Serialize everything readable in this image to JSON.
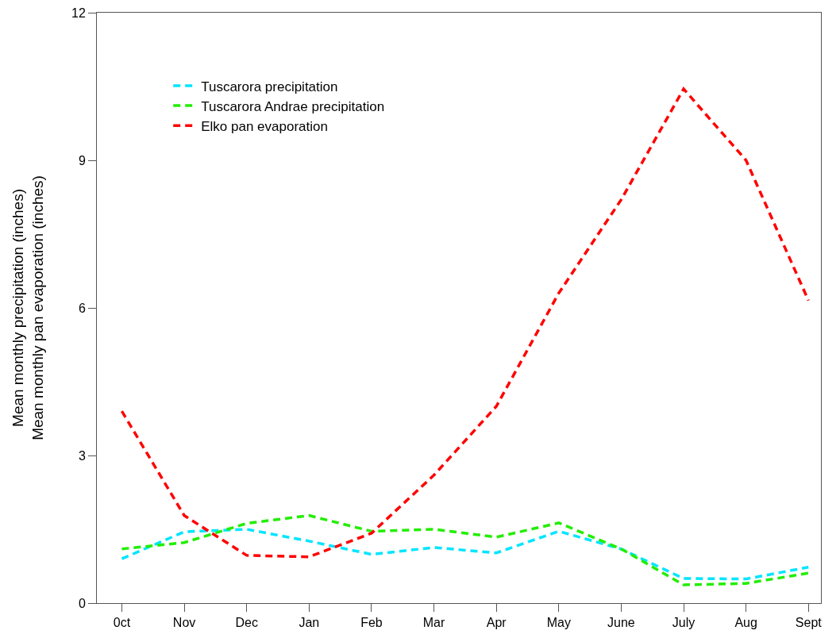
{
  "chart_data": {
    "type": "line",
    "ylabel": "Mean monthly precipitation (inches)\nMean monthly pan evaporation (inches)",
    "categories": [
      "0ct",
      "Nov",
      "Dec",
      "Jan",
      "Feb",
      "Mar",
      "Apr",
      "May",
      "June",
      "July",
      "Aug",
      "Sept"
    ],
    "series": [
      {
        "name": "Tuscarora precipitation",
        "color": "#00e5ff",
        "values": [
          0.9,
          1.45,
          1.5,
          1.26,
          0.99,
          1.13,
          1.02,
          1.46,
          1.1,
          0.5,
          0.49,
          0.73
        ]
      },
      {
        "name": "Tuscarora Andrae precipitation",
        "color": "#22ee00",
        "values": [
          1.1,
          1.23,
          1.62,
          1.78,
          1.46,
          1.5,
          1.34,
          1.63,
          1.1,
          0.37,
          0.4,
          0.61
        ]
      },
      {
        "name": "Elko pan evaporation",
        "color": "#ff0000",
        "values": [
          3.9,
          1.78,
          0.97,
          0.94,
          1.42,
          2.6,
          4.0,
          6.3,
          8.2,
          10.45,
          9.0,
          6.15
        ]
      }
    ],
    "ylim": [
      0,
      12
    ],
    "yticks": [
      0,
      3,
      6,
      9,
      12
    ],
    "grid": false,
    "legend": "top left",
    "marker": "none",
    "line_style": "dashed"
  }
}
